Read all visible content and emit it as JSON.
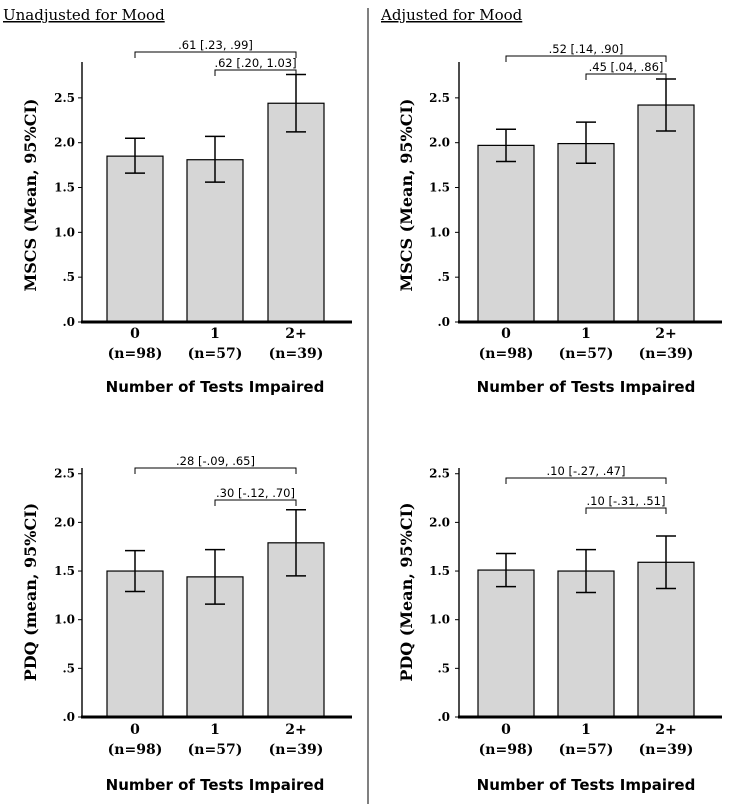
{
  "headings": {
    "left": "Unadjusted for Mood",
    "right": "Adjusted for Mood"
  },
  "chart_data": [
    {
      "type": "bar",
      "panel": "top-left",
      "ylabel": "MSCS (Mean, 95%CI)",
      "xlabel": "Number of Tests Impaired",
      "categories": [
        "0",
        "1",
        "2+"
      ],
      "category_ns": [
        "(n=98)",
        "(n=57)",
        "(n=39)"
      ],
      "values": [
        1.85,
        1.81,
        2.44
      ],
      "ci_low": [
        1.66,
        1.56,
        2.12
      ],
      "ci_high": [
        2.05,
        2.07,
        2.76
      ],
      "ylim": [
        0,
        2.9
      ],
      "yticks": [
        0,
        0.5,
        1.0,
        1.5,
        2.0,
        2.5
      ],
      "ytick_labels": [
        ".0",
        ".5",
        "1.0",
        "1.5",
        "2.0",
        "2.5"
      ],
      "annotations": [
        {
          "text": ".61 [.23, .99]",
          "from": 0,
          "to": 2,
          "level": 0
        },
        {
          "text": ".62 [.20, 1.03]",
          "from": 1,
          "to": 2,
          "level": 1
        }
      ]
    },
    {
      "type": "bar",
      "panel": "top-right",
      "ylabel": "MSCS (Mean, 95%CI)",
      "xlabel": "Number of Tests Impaired",
      "categories": [
        "0",
        "1",
        "2+"
      ],
      "category_ns": [
        "(n=98)",
        "(n=57)",
        "(n=39)"
      ],
      "values": [
        1.97,
        1.99,
        2.42
      ],
      "ci_low": [
        1.79,
        1.77,
        2.13
      ],
      "ci_high": [
        2.15,
        2.23,
        2.71
      ],
      "ylim": [
        0,
        2.9
      ],
      "yticks": [
        0,
        0.5,
        1.0,
        1.5,
        2.0,
        2.5
      ],
      "ytick_labels": [
        ".0",
        ".5",
        "1.0",
        "1.5",
        "2.0",
        "2.5"
      ],
      "annotations": [
        {
          "text": ".52 [.14, .90]",
          "from": 0,
          "to": 2,
          "level": 0
        },
        {
          "text": ".45 [.04, .86]",
          "from": 1,
          "to": 2,
          "level": 1
        }
      ]
    },
    {
      "type": "bar",
      "panel": "bottom-left",
      "ylabel": "PDQ (mean, 95%CI)",
      "xlabel": "Number of Tests Impaired",
      "categories": [
        "0",
        "1",
        "2+"
      ],
      "category_ns": [
        "(n=98)",
        "(n=57)",
        "(n=39)"
      ],
      "values": [
        1.5,
        1.44,
        1.79
      ],
      "ci_low": [
        1.29,
        1.16,
        1.45
      ],
      "ci_high": [
        1.71,
        1.72,
        2.13
      ],
      "ylim": [
        0,
        2.6
      ],
      "yticks": [
        0,
        0.5,
        1.0,
        1.5,
        2.0,
        2.5
      ],
      "ytick_labels": [
        ".0",
        ".5",
        "1.0",
        "1.5",
        "2.0",
        "2.5"
      ],
      "annotations": [
        {
          "text": ".28 [-.09, .65]",
          "from": 0,
          "to": 2,
          "level": 0
        },
        {
          "text": ".30 [-.12, .70]",
          "from": 1,
          "to": 2,
          "level": 1
        }
      ]
    },
    {
      "type": "bar",
      "panel": "bottom-right",
      "ylabel": "PDQ (Mean, 95%CI)",
      "xlabel": "Number of Tests Impaired",
      "categories": [
        "0",
        "1",
        "2+"
      ],
      "category_ns": [
        "(n=98)",
        "(n=57)",
        "(n=39)"
      ],
      "values": [
        1.51,
        1.5,
        1.59
      ],
      "ci_low": [
        1.34,
        1.28,
        1.32
      ],
      "ci_high": [
        1.68,
        1.72,
        1.86
      ],
      "ylim": [
        0,
        2.6
      ],
      "yticks": [
        0,
        0.5,
        1.0,
        1.5,
        2.0,
        2.5
      ],
      "ytick_labels": [
        ".0",
        ".5",
        "1.0",
        "1.5",
        "2.0",
        "2.5"
      ],
      "annotations": [
        {
          "text": ".10 [-.27, .47]",
          "from": 0,
          "to": 2,
          "level": 0
        },
        {
          "text": ".10 [-.31, .51]",
          "from": 1,
          "to": 2,
          "level": 1
        }
      ]
    }
  ]
}
